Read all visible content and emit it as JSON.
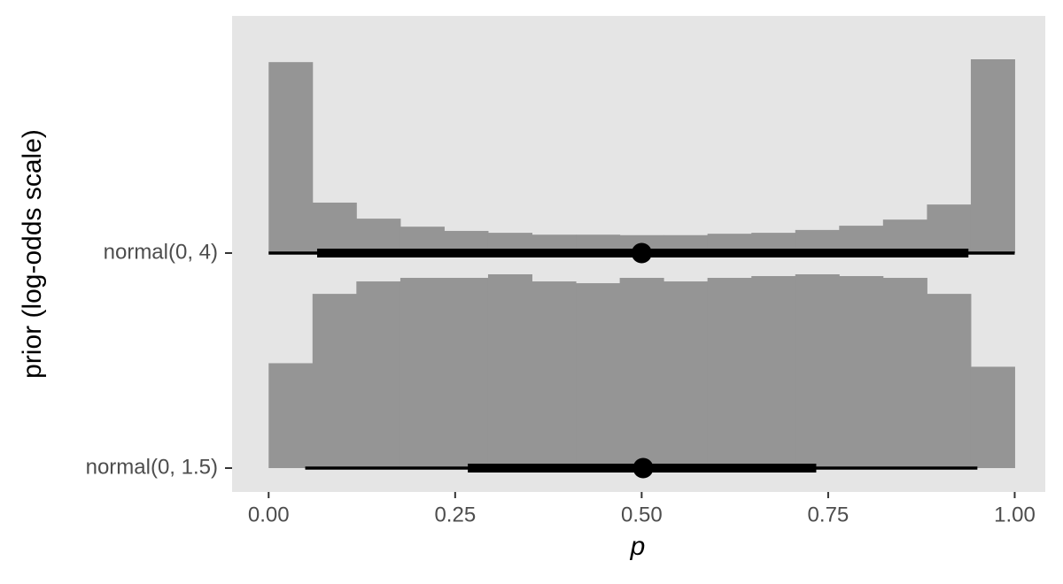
{
  "chart_data": {
    "type": "histinterval",
    "xlabel": "p",
    "ylabel": "prior (log-odds scale)",
    "categories": [
      "normal(0, 4)",
      "normal(0, 1.5)"
    ],
    "bins": [
      0,
      0.0588,
      0.1176,
      0.1765,
      0.2353,
      0.2941,
      0.3529,
      0.4118,
      0.4706,
      0.5294,
      0.5882,
      0.6471,
      0.7059,
      0.7647,
      0.8235,
      0.8824,
      0.9412,
      1
    ],
    "groups": [
      {
        "density": [
          4.05,
          1.07,
          0.73,
          0.56,
          0.47,
          0.43,
          0.39,
          0.39,
          0.38,
          0.38,
          0.41,
          0.43,
          0.49,
          0.58,
          0.71,
          1.03,
          4.11
        ],
        "point": 0.5,
        "interval_66": [
          0.065,
          0.938
        ],
        "interval_95": [
          0.0,
          1.0
        ]
      },
      {
        "density": [
          0.59,
          0.98,
          1.05,
          1.07,
          1.07,
          1.09,
          1.05,
          1.04,
          1.07,
          1.05,
          1.07,
          1.08,
          1.09,
          1.08,
          1.07,
          0.98,
          0.57
        ],
        "point": 0.502,
        "interval_66": [
          0.267,
          0.734
        ],
        "interval_95": [
          0.049,
          0.95
        ]
      }
    ],
    "color": "#959595",
    "interval_color": "#000000",
    "panel_color": "#e5e5e5",
    "grid": false,
    "xlim": [
      -0.049,
      1.041
    ],
    "xticks": [
      {
        "value": 0,
        "label": "0.00"
      },
      {
        "value": 0.25,
        "label": "0.25"
      },
      {
        "value": 0.5,
        "label": "0.50"
      },
      {
        "value": 0.75,
        "label": "0.75"
      },
      {
        "value": 1,
        "label": "1.00"
      }
    ]
  }
}
